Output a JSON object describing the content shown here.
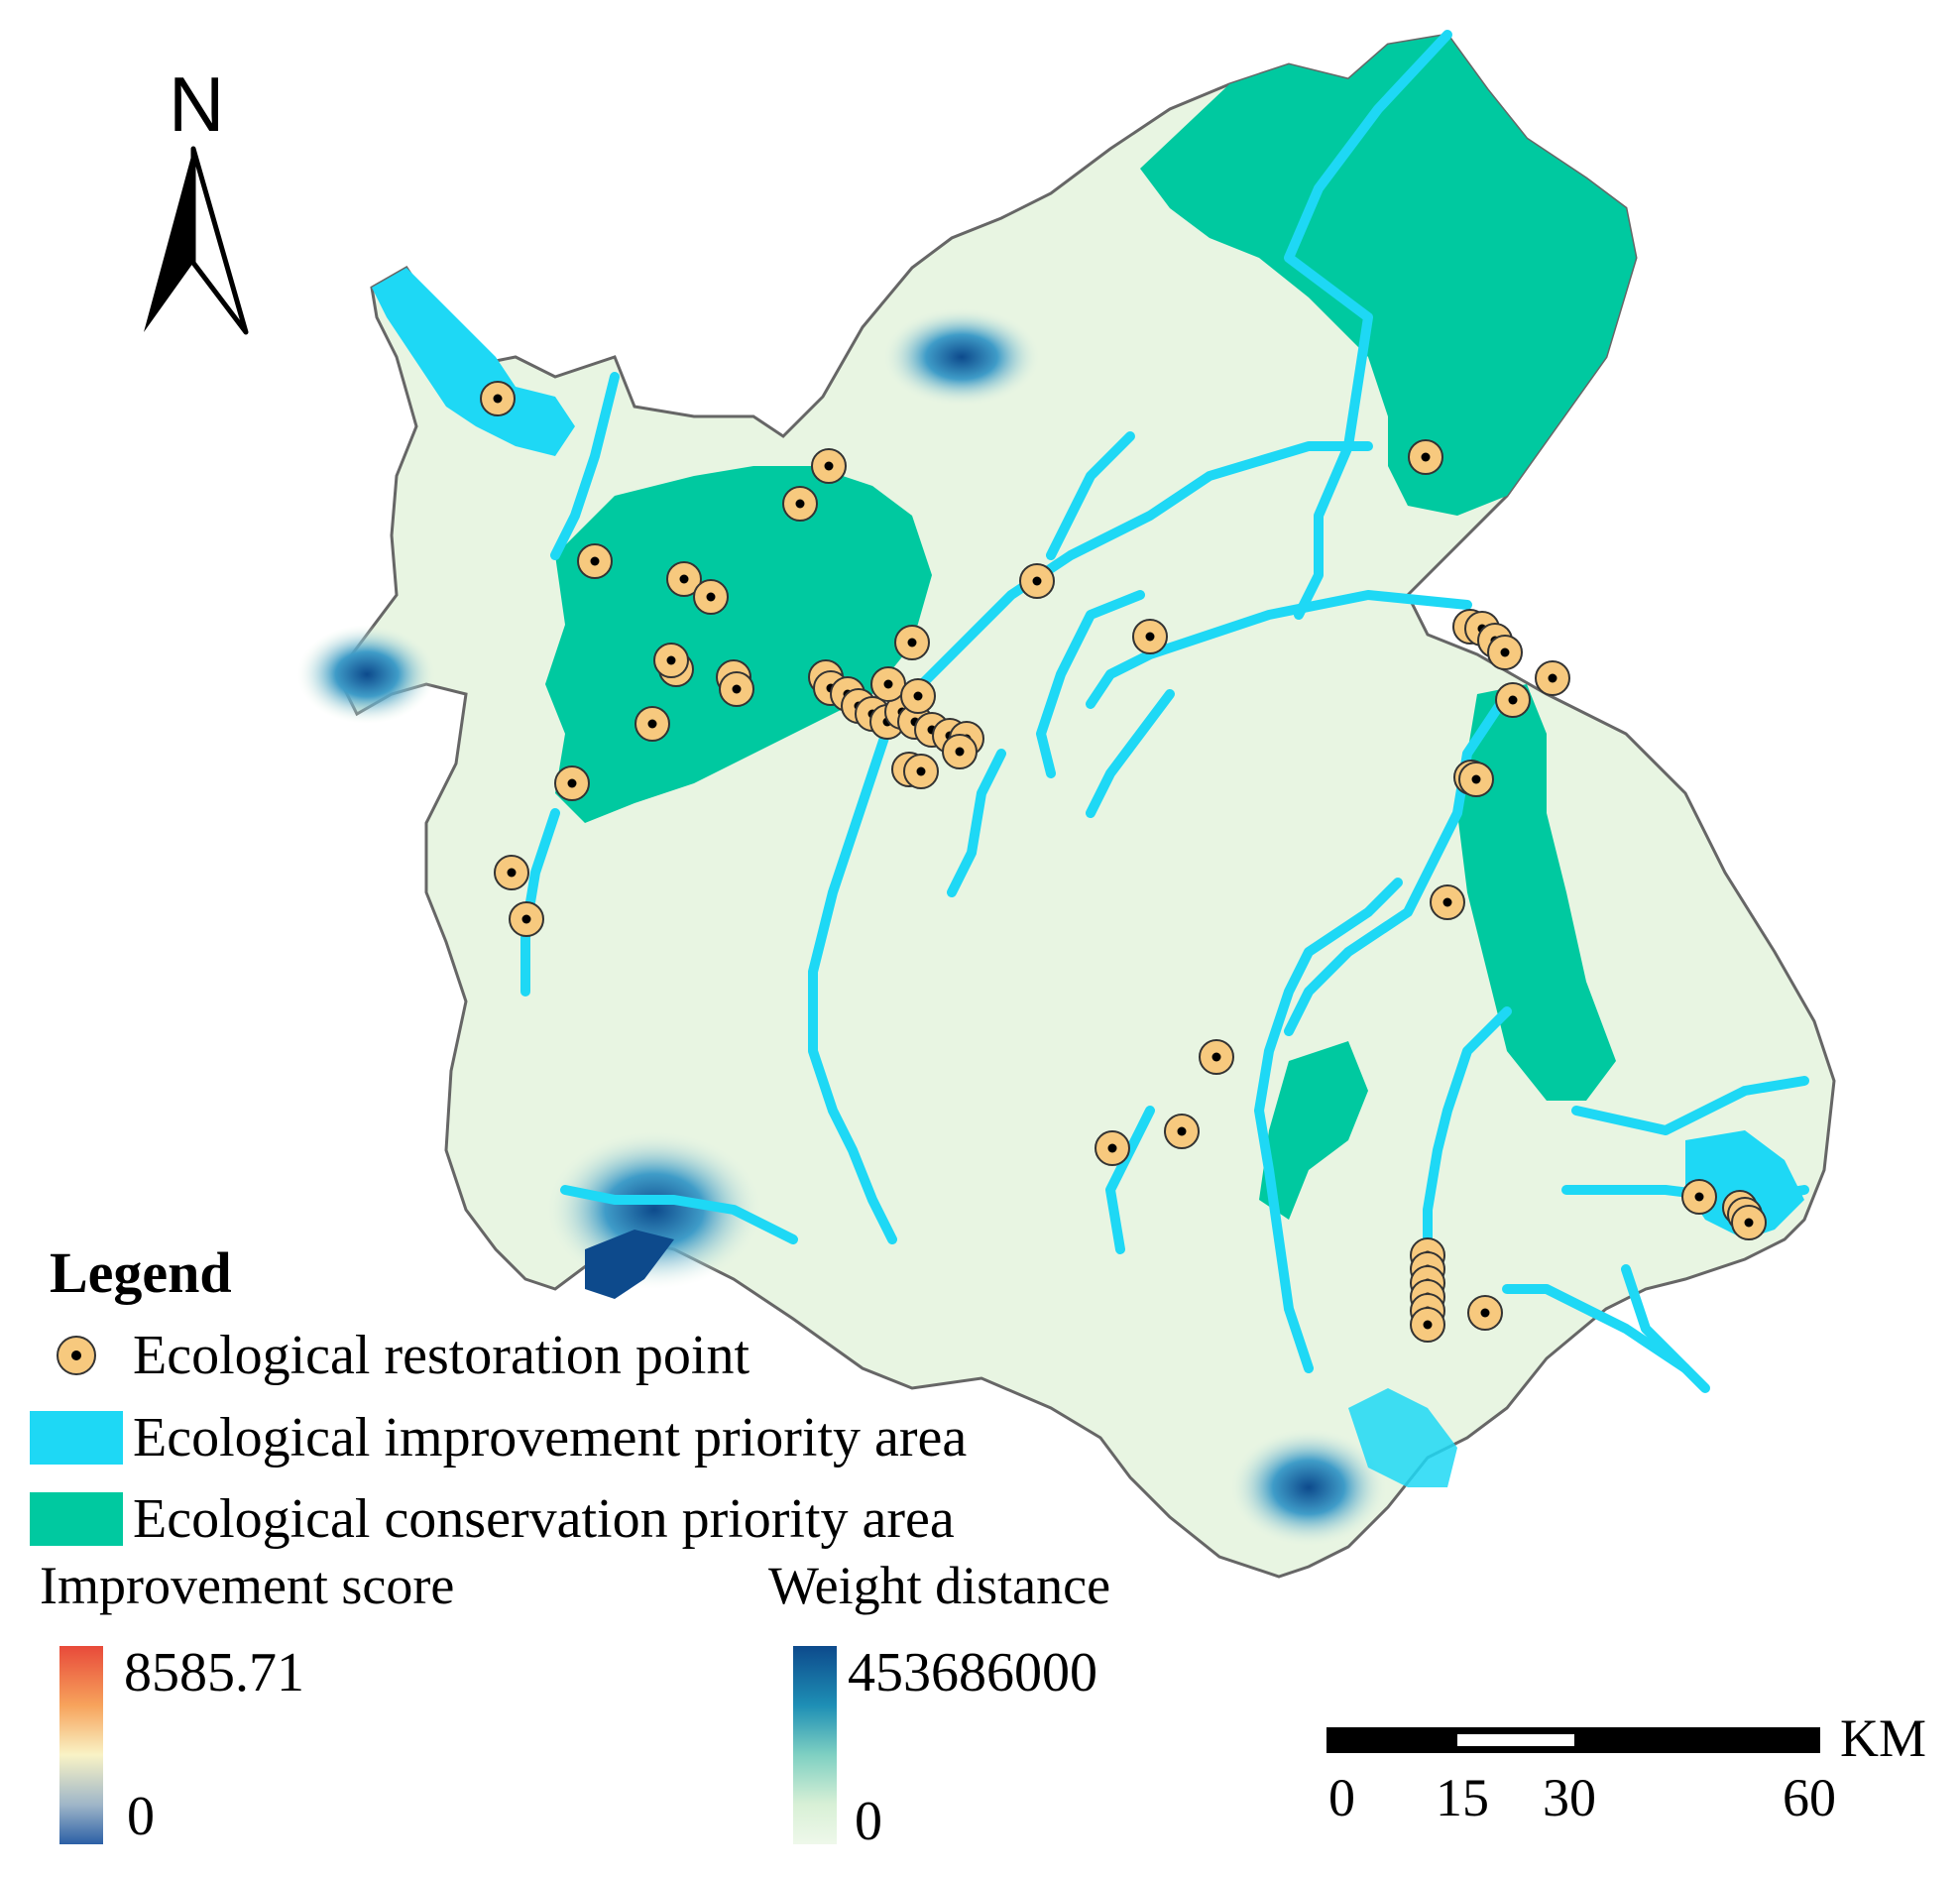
{
  "north_arrow": {
    "letter": "N"
  },
  "legend": {
    "title": "Legend",
    "items": [
      {
        "label": "Ecological restoration point",
        "kind": "point",
        "color": "#f7c97e"
      },
      {
        "label": "Ecological improvement priority area",
        "kind": "swatch",
        "color": "#1ed8f5"
      },
      {
        "label": "Ecological conservation priority area",
        "kind": "swatch",
        "color": "#00c9a0"
      }
    ]
  },
  "improvement_score": {
    "title": "Improvement score",
    "max": "8585.71",
    "min": "0",
    "ramp": [
      "#e84a3a",
      "#f7a35c",
      "#f9f3c6",
      "#9fb6c8",
      "#2b5fa6"
    ]
  },
  "weight_distance": {
    "title": "Weight distance",
    "max": "453686000",
    "min": "0",
    "ramp": [
      "#0d4a8c",
      "#1e8fb5",
      "#7fd0c2",
      "#d8f0d6",
      "#eef8ea"
    ]
  },
  "scale_bar": {
    "unit": "KM",
    "ticks": [
      "0",
      "15",
      "30",
      "60"
    ]
  },
  "colors": {
    "land": "#e8f5e2",
    "improvement": "#1ed8f5",
    "conservation": "#00c9a0",
    "high_distance": "#0d4a8c",
    "point_fill": "#f7c97e"
  }
}
